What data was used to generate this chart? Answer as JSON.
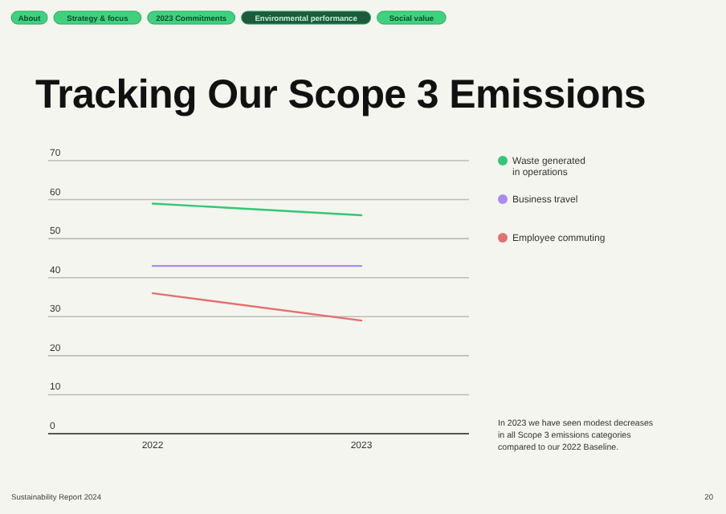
{
  "chart_data": {
    "type": "line",
    "title": "Tracking Our Scope 3 Emissions",
    "categories": [
      "2022",
      "2023"
    ],
    "series": [
      {
        "name": "Waste generated in operations",
        "color": "#34c774",
        "values": [
          59,
          56
        ]
      },
      {
        "name": "Business travel",
        "color": "#a98bf0",
        "values": [
          43,
          43
        ]
      },
      {
        "name": "Employee commuting",
        "color": "#e3706c",
        "values": [
          36,
          29
        ]
      }
    ],
    "ylim": [
      0,
      70
    ],
    "yticks": [
      0,
      10,
      20,
      30,
      40,
      50,
      60,
      70
    ],
    "grid": "y",
    "legend": "right",
    "marker": "none",
    "line_style": "solid",
    "annotations": [
      "About",
      "Strategy & focus",
      "2023 Commitments",
      "Environmental performance",
      "Social value",
      "In 2023 we have seen modest decreases in all Scope 3 emissions categories compared to our 2022 Baseline.",
      "Sustainability Report 2024",
      "20"
    ]
  }
}
